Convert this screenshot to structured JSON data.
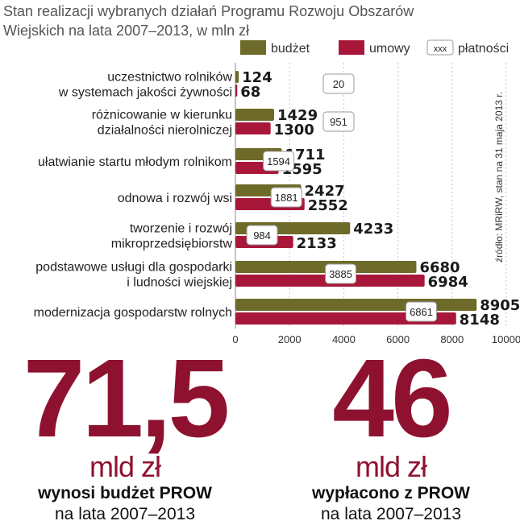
{
  "title": "Stan realizacji wybranych działań Programu Rozwoju Obszarów Wiejskich na lata 2007–2013, w mln zł",
  "source_note": "źródło: MRiRW, stan na 31 maja 2013 r.",
  "colors": {
    "budget": "#6e6a2a",
    "contracts": "#a8173a",
    "big": "#8e1230"
  },
  "chart_data": {
    "type": "bar",
    "orientation": "horizontal",
    "categories": [
      [
        "uczestnictwo rolników",
        "w systemach jakości żywności"
      ],
      [
        "różnicowanie w kierunku",
        "działalności nierolniczej"
      ],
      [
        "ułatwianie startu młodym rolnikom"
      ],
      [
        "odnowa i rozwój wsi"
      ],
      [
        "tworzenie i rozwój",
        "mikroprzedsiębiorstw"
      ],
      [
        "podstawowe usługi dla gospodarki",
        "i ludności wiejskiej"
      ],
      [
        "modernizacja gospodarstw rolnych"
      ]
    ],
    "series": [
      {
        "name": "budżet",
        "values": [
          124,
          1429,
          1711,
          2427,
          4233,
          6680,
          8905
        ]
      },
      {
        "name": "umowy",
        "values": [
          68,
          1300,
          1595,
          2552,
          2133,
          6984,
          8148
        ]
      },
      {
        "name": "płatności",
        "values": [
          20,
          951,
          1594,
          1881,
          984,
          3885,
          6861
        ]
      }
    ],
    "legend_box_label": "xxx",
    "xlim": [
      0,
      10000
    ],
    "xticks": [
      0,
      2000,
      4000,
      6000,
      8000,
      10000
    ],
    "grid": true,
    "legend_position": "top"
  },
  "stats": [
    {
      "value": "71,5",
      "unit": "mld zł",
      "caption_bold": "wynosi budżet PROW",
      "caption": "na lata 2007–2013"
    },
    {
      "value": "46",
      "unit": "mld zł",
      "caption_bold": "wypłacono z PROW",
      "caption": "na lata 2007–2013"
    }
  ]
}
